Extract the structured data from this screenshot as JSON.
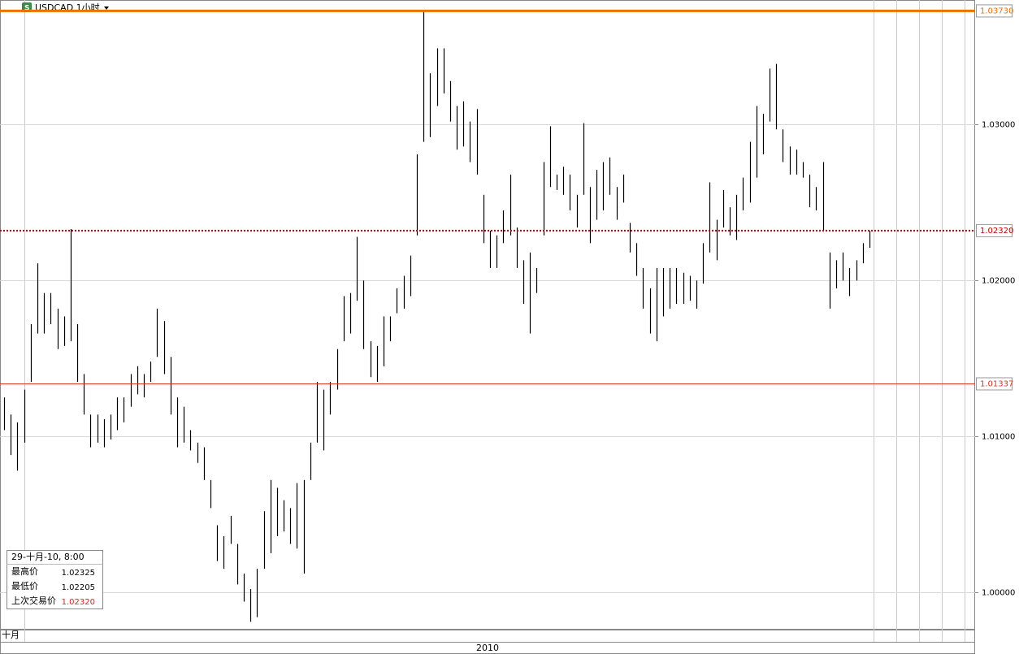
{
  "chart_data": {
    "type": "hlbar",
    "title": "USDCAD 1小时",
    "high": [
      1.0125,
      1.0114,
      1.0109,
      1.013,
      1.0172,
      1.0211,
      1.0192,
      1.0192,
      1.0182,
      1.0177,
      1.0233,
      1.0172,
      1.014,
      1.0114,
      1.0114,
      1.0111,
      1.0114,
      1.0125,
      1.0125,
      1.014,
      1.0145,
      1.014,
      1.0148,
      1.0182,
      1.0174,
      1.0151,
      1.0125,
      1.0119,
      1.0104,
      1.0096,
      1.0093,
      1.0072,
      1.0043,
      1.0036,
      1.0049,
      1.0031,
      1.0012,
      1.0002,
      1.0015,
      1.0052,
      1.0072,
      1.0067,
      1.0059,
      1.0054,
      1.007,
      1.0072,
      1.0096,
      1.0135,
      1.013,
      1.0135,
      1.0156,
      1.019,
      1.0192,
      1.0228,
      1.02,
      1.0161,
      1.0158,
      1.0177,
      1.0177,
      1.0195,
      1.0203,
      1.0216,
      1.0281,
      1.0373,
      1.0333,
      1.0349,
      1.0349,
      1.0328,
      1.0312,
      1.0315,
      1.0302,
      1.031,
      1.0255,
      1.0232,
      1.0229,
      1.0245,
      1.0268,
      1.0234,
      1.0213,
      1.0218,
      1.0208,
      1.0276,
      1.0299,
      1.0268,
      1.0273,
      1.0268,
      1.0255,
      1.0301,
      1.026,
      1.0271,
      1.0276,
      1.0279,
      1.026,
      1.0268,
      1.0237,
      1.0224,
      1.0208,
      1.0195,
      1.0208,
      1.0208,
      1.0208,
      1.0208,
      1.0205,
      1.0203,
      1.02,
      1.0224,
      1.0263,
      1.0239,
      1.0258,
      1.0247,
      1.0255,
      1.0266,
      1.0289,
      1.0312,
      1.0307,
      1.0336,
      1.0339,
      1.0297,
      1.0286,
      1.0284,
      1.0276,
      1.0268,
      1.026,
      1.0276,
      1.0218,
      1.0213,
      1.0218,
      1.0208,
      1.0213,
      1.0224,
      1.0232
    ],
    "low": [
      1.0104,
      1.0088,
      1.0078,
      1.0096,
      1.0135,
      1.0166,
      1.0166,
      1.0172,
      1.0156,
      1.0158,
      1.0161,
      1.0135,
      1.0114,
      1.0093,
      1.0096,
      1.0093,
      1.0098,
      1.0104,
      1.0109,
      1.0119,
      1.0127,
      1.0125,
      1.0135,
      1.0151,
      1.014,
      1.0114,
      1.0093,
      1.0096,
      1.0091,
      1.0083,
      1.0072,
      1.0054,
      1.002,
      1.0015,
      1.0031,
      1.0005,
      0.9994,
      0.9981,
      0.9984,
      1.0015,
      1.0025,
      1.0036,
      1.0039,
      1.0031,
      1.0028,
      1.0012,
      1.0072,
      1.0096,
      1.0091,
      1.0114,
      1.013,
      1.0161,
      1.0166,
      1.0187,
      1.0156,
      1.0138,
      1.0135,
      1.0145,
      1.0161,
      1.0179,
      1.0182,
      1.019,
      1.0229,
      1.0289,
      1.0292,
      1.0312,
      1.032,
      1.0302,
      1.0284,
      1.0286,
      1.0276,
      1.0268,
      1.0224,
      1.0208,
      1.0208,
      1.0224,
      1.0229,
      1.0208,
      1.0185,
      1.0166,
      1.0192,
      1.0229,
      1.026,
      1.0258,
      1.0255,
      1.0245,
      1.0234,
      1.0255,
      1.0224,
      1.0239,
      1.0245,
      1.0255,
      1.0239,
      1.025,
      1.0218,
      1.0203,
      1.0182,
      1.0166,
      1.0161,
      1.0177,
      1.0182,
      1.0185,
      1.0185,
      1.0187,
      1.0182,
      1.0198,
      1.0218,
      1.0213,
      1.0234,
      1.0229,
      1.0226,
      1.0245,
      1.025,
      1.0266,
      1.0281,
      1.0302,
      1.0297,
      1.0276,
      1.0268,
      1.0268,
      1.0266,
      1.0247,
      1.0245,
      1.0232,
      1.0182,
      1.0195,
      1.02,
      1.019,
      1.02,
      1.0211,
      1.0221
    ],
    "color": "#000000",
    "ylim": [
      0.9976,
      1.038
    ],
    "yticks": [
      {
        "value": 1.0,
        "label": "1.00000"
      },
      {
        "value": 1.01,
        "label": "1.01000"
      },
      {
        "value": 1.02,
        "label": "1.02000"
      },
      {
        "value": 1.03,
        "label": "1.03000"
      }
    ],
    "grid": true,
    "lines": [
      {
        "value": 1.0373,
        "label": "1.03730",
        "color": "#f07000",
        "style": "solid"
      },
      {
        "value": 1.0232,
        "label": "1.02320",
        "color": "#c00000",
        "style": "dotted"
      },
      {
        "value": 1.01337,
        "label": "1.01337",
        "color": "#e03020",
        "style": "solid"
      }
    ],
    "x_labels": [
      "十月",
      "2010"
    ],
    "info": {
      "time": "29-十月-10, 8:00",
      "rows": [
        [
          "最高价",
          "1.02325"
        ],
        [
          "最低价",
          "1.02205"
        ],
        [
          "上次交易价",
          "1.02320"
        ]
      ]
    }
  }
}
